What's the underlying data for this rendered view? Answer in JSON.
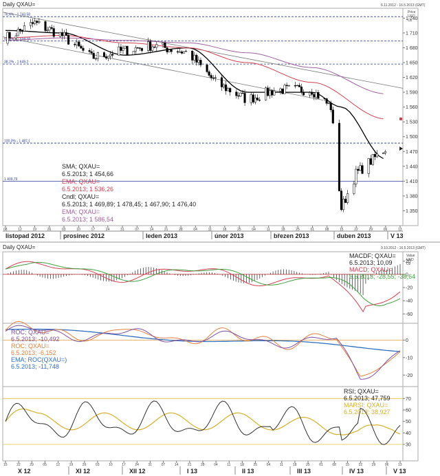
{
  "top_chart": {
    "title": "Daily QXAU=",
    "date_range": "6.11.2012 - 16.5.2013 (GMT)",
    "axis_header": [
      "Price",
      "USD",
      "Oz"
    ],
    "y_ticks": [
      "1 740",
      "1 710",
      "1 680",
      "1 650",
      "1 620",
      "1 590",
      "1 560",
      "1 530",
      "1 500",
      "1 470",
      "1 440",
      "1 410",
      "1 380",
      "1 350"
    ],
    "hlines": [
      {
        "label": "76,4% - 1 743,58",
        "value": 1743
      },
      {
        "label": "61,8% - 1 694,58",
        "value": 1694
      },
      {
        "label": "38,2% - 1 649,2",
        "value": 1647
      },
      {
        "label": "100,0% - 1 487,1",
        "value": 1487
      },
      {
        "label": "1 409,79",
        "value": 1409.79
      }
    ],
    "day_ticks": [
      "08",
      "12",
      "19",
      "26",
      "03",
      "10",
      "17",
      "24",
      "31",
      "07",
      "14",
      "21",
      "28",
      "04",
      "11",
      "18",
      "25",
      "04",
      "11",
      "18",
      "25",
      "01",
      "08",
      "15",
      "22",
      "29",
      "06",
      "13"
    ],
    "months": [
      "listopad 2012",
      "prosinec 2012",
      "leden 2013",
      "únor 2013",
      "březen 2013",
      "duben 2013",
      "V 13"
    ],
    "legend": {
      "sma_title": "SMA; QXAU=",
      "sma_value": "6.5.2013; 1 454,66",
      "ema1_title": "EMA; QXAU=",
      "ema1_value": "6.5.2013; 1 536,26",
      "cndl_title": "Cndl; QXAU=",
      "cndl_value": "6.5.2013; 1 469,89; 1 478,45; 1 467,90; 1 476,40",
      "ema2_title": "EMA; QXAU=",
      "ema2_value": "6.5.2013; 1 586,54"
    }
  },
  "bottom_chart": {
    "title": "Daily QXAU=",
    "date_range": "9.10.2012 - 16.5.2013 (GMT)",
    "axis_header": [
      "Value",
      "USD",
      "Oz"
    ],
    "macd_ticks": [
      "20",
      "0",
      "-20",
      "-40",
      "-60"
    ],
    "roc_ticks": [
      "0",
      "-10",
      "-20"
    ],
    "rsi_ticks": [
      "70",
      "60",
      "50",
      "40",
      "30"
    ],
    "day_ticks": [
      "15",
      "22",
      "29",
      "05",
      "12",
      "19",
      "26",
      "03",
      "10",
      "17",
      "24",
      "31",
      "07",
      "14",
      "21",
      "28",
      "04",
      "11",
      "18",
      "25",
      "04",
      "11",
      "18",
      "25",
      "01",
      "08",
      "15",
      "22",
      "29",
      "06",
      "13"
    ],
    "months": [
      "X 12",
      "XI 12",
      "XII 12",
      "I 13",
      "II 13",
      "III 13",
      "IV 13",
      "V 13"
    ],
    "macd_legend": {
      "title1": "MACDF; QXAU=",
      "value1": "6.5.2013; 10,09",
      "title2": "MACD; QXAU=",
      "value2": "6.5.2013; -28,55; -38,64"
    },
    "roc_legend": {
      "title1": "ROC; QXAU=",
      "value1": "6.5.2013; -10,492",
      "title2": "ROC; QXAU=",
      "value2": "6.5.2013; -6,152",
      "title3": "EMA; ROC(QXAU=)",
      "value3": "6.5.2013; -11,748"
    },
    "rsi_legend": {
      "title1": "RSI; QXAU=",
      "value1": "6.5.2013; 47,759",
      "title2": "MARSI; QXAU=",
      "value2": "6.5.2013; 38,927"
    }
  },
  "chart_data": [
    {
      "type": "line",
      "title": "Daily QXAU=",
      "subtitle": "6.11.2012 - 16.5.2013 (GMT)",
      "ylabel": "Price USD Oz",
      "ylim": [
        1320,
        1760
      ],
      "x_range": [
        "2012-11-06",
        "2013-05-13"
      ],
      "series": [
        {
          "name": "Cndl; QXAU=",
          "color": "#000000",
          "x": [
            "2012-11-06",
            "2012-11-20",
            "2012-12-03",
            "2012-12-17",
            "2013-01-02",
            "2013-01-15",
            "2013-02-01",
            "2013-02-14",
            "2013-03-01",
            "2013-03-15",
            "2013-04-01",
            "2013-04-10",
            "2013-04-15",
            "2013-04-22",
            "2013-05-06"
          ],
          "values": [
            1700,
            1730,
            1705,
            1660,
            1675,
            1685,
            1670,
            1610,
            1575,
            1595,
            1595,
            1560,
            1355,
            1425,
            1476
          ]
        },
        {
          "name": "SMA; QXAU=",
          "color": "#000000",
          "x": [
            "2012-11-06",
            "2012-12-03",
            "2013-01-02",
            "2013-02-01",
            "2013-03-01",
            "2013-04-01",
            "2013-04-15",
            "2013-05-06"
          ],
          "values": [
            1715,
            1710,
            1665,
            1680,
            1590,
            1590,
            1560,
            1455
          ]
        },
        {
          "name": "EMA; QXAU=",
          "color": "#d04050",
          "x": [
            "2012-11-06",
            "2012-12-03",
            "2013-01-02",
            "2013-02-01",
            "2013-03-01",
            "2013-04-01",
            "2013-05-06"
          ],
          "values": [
            1700,
            1705,
            1690,
            1680,
            1650,
            1610,
            1536
          ]
        },
        {
          "name": "EMA; QXAU=",
          "color": "#a060a0",
          "x": [
            "2012-11-06",
            "2012-12-03",
            "2013-01-02",
            "2013-02-01",
            "2013-03-01",
            "2013-04-01",
            "2013-05-06"
          ],
          "values": [
            1695,
            1700,
            1695,
            1690,
            1670,
            1640,
            1587
          ]
        }
      ]
    },
    {
      "type": "line",
      "title": "MACDF; QXAU=",
      "ylim": [
        -70,
        30
      ],
      "x_range": [
        "2012-10-09",
        "2013-05-13"
      ],
      "series": [
        {
          "name": "MACDF; QXAU=",
          "kind": "histogram",
          "color": "#000000",
          "last_value": 10.09
        },
        {
          "name": "MACD; QXAU=",
          "color": "#d04050",
          "last_value": -28.55
        },
        {
          "name": "MACD; QXAU=",
          "color": "#40a040",
          "last_value": -38.64
        }
      ]
    },
    {
      "type": "line",
      "title": "ROC; QXAU=",
      "ylim": [
        -25,
        8
      ],
      "series": [
        {
          "name": "ROC; QXAU=",
          "color": "#8050a0",
          "last_value": -10.492
        },
        {
          "name": "ROC; QXAU=",
          "color": "#e08040",
          "last_value": -6.152
        },
        {
          "name": "EMA; ROC(QXAU=)",
          "color": "#3070c0",
          "last_value": -11.748
        }
      ]
    },
    {
      "type": "line",
      "title": "RSI; QXAU=",
      "ylim": [
        18,
        78
      ],
      "series": [
        {
          "name": "RSI; QXAU=",
          "color": "#303030",
          "last_value": 47.759
        },
        {
          "name": "MARSI; QXAU=",
          "color": "#d4b030",
          "last_value": 38.927
        }
      ]
    }
  ]
}
